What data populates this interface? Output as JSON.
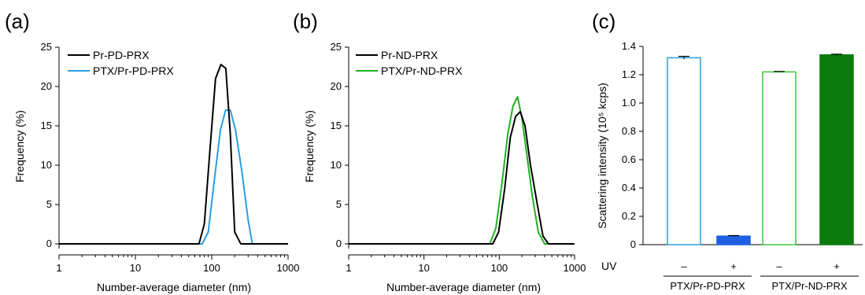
{
  "panels": [
    {
      "label": "(a)",
      "chart_data": {
        "type": "line",
        "xscale": "log",
        "xlim": [
          1,
          1000
        ],
        "ylim": [
          0,
          25
        ],
        "xticks": [
          "1",
          "10",
          "100",
          "1000"
        ],
        "yticks": [
          "0",
          "5",
          "10",
          "15",
          "20",
          "25"
        ],
        "xlabel": "Number-average diameter (nm)",
        "ylabel": "Frequency (%)",
        "legend_position": "top-left",
        "series": [
          {
            "name": "Pr-PD-PRX",
            "color": "#000000",
            "x": [
              1,
              68,
              80,
              95,
              112,
              132,
              153,
              175,
              200,
              240,
              300,
              1000
            ],
            "y": [
              0,
              0,
              2.5,
              12,
              21,
              22.8,
              22.3,
              14,
              1.5,
              0,
              0,
              0
            ]
          },
          {
            "name": "PTX/Pr-PD-PRX",
            "color": "#2b9de4",
            "x": [
              1,
              75,
              90,
              108,
              130,
              152,
              175,
              205,
              250,
              300,
              340,
              400,
              1000
            ],
            "y": [
              0,
              0,
              1.5,
              8,
              14.5,
              17,
              17,
              14.5,
              9,
              3,
              0,
              0,
              0
            ]
          }
        ]
      }
    },
    {
      "label": "(b)",
      "chart_data": {
        "type": "line",
        "xscale": "log",
        "xlim": [
          1,
          1000
        ],
        "ylim": [
          0,
          25
        ],
        "xticks": [
          "1",
          "10",
          "100",
          "1000"
        ],
        "yticks": [
          "0",
          "5",
          "10",
          "15",
          "20",
          "25"
        ],
        "xlabel": "Number-average diameter (nm)",
        "ylabel": "Frequency (%)",
        "legend_position": "top-left",
        "series": [
          {
            "name": "Pr-ND-PRX",
            "color": "#000000",
            "x": [
              1,
              82,
              98,
              118,
              140,
              165,
              190,
              220,
              260,
              320,
              380,
              450,
              1000
            ],
            "y": [
              0,
              0,
              1.5,
              7,
              13.5,
              16.2,
              16.8,
              15,
              10,
              5,
              1,
              0,
              0
            ]
          },
          {
            "name": "PTX/Pr-ND-PRX",
            "color": "#1fb31f",
            "x": [
              1,
              75,
              90,
              108,
              130,
              152,
              175,
              200,
              235,
              275,
              330,
              400,
              1000
            ],
            "y": [
              0,
              0,
              2,
              7.5,
              14,
              17.5,
              18.7,
              16,
              11,
              6,
              1.5,
              0,
              0
            ]
          }
        ]
      }
    },
    {
      "label": "(c)",
      "chart_data": {
        "type": "bar",
        "ylim": [
          0,
          1.4
        ],
        "yticks": [
          "0",
          "0.2",
          "0.4",
          "0.6",
          "0.8",
          "1.0",
          "1.2",
          "1.4"
        ],
        "ylabel": "Scattering intensity (10⁵ kcps)",
        "row_label": "UV",
        "categories": [
          "–",
          "+",
          "–",
          "+"
        ],
        "groups": [
          "PTX/Pr-PD-PRX",
          "PTX/Pr-ND-PRX"
        ],
        "values": [
          1.32,
          0.06,
          1.22,
          1.34
        ],
        "errors": [
          0.01,
          0.004,
          0.003,
          0.005
        ],
        "bar_styles": [
          {
            "stroke": "#2b9de4",
            "fill": "#ffffff"
          },
          {
            "stroke": "#1f5fd6",
            "fill": "#1f5fe6"
          },
          {
            "stroke": "#3cc83c",
            "fill": "#ffffff"
          },
          {
            "stroke": "#0d7a0d",
            "fill": "#0d7a0d"
          }
        ]
      }
    }
  ]
}
